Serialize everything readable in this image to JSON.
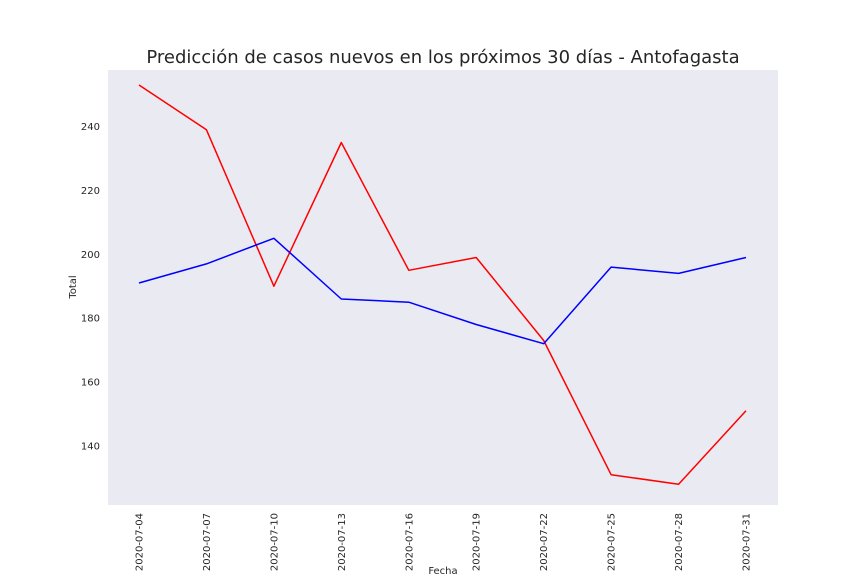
{
  "chart_data": {
    "type": "line",
    "title": "Predicción de casos nuevos en los próximos 30 días - Antofagasta",
    "xlabel": "Fecha",
    "ylabel": "Total",
    "x": [
      "2020-07-04",
      "2020-07-07",
      "2020-07-10",
      "2020-07-13",
      "2020-07-16",
      "2020-07-19",
      "2020-07-22",
      "2020-07-25",
      "2020-07-28",
      "2020-07-31"
    ],
    "xticks": [
      "2020-07-04",
      "2020-07-07",
      "2020-07-10",
      "2020-07-13",
      "2020-07-16",
      "2020-07-19",
      "2020-07-22",
      "2020-07-25",
      "2020-07-28",
      "2020-07-31"
    ],
    "yticks": [
      140,
      160,
      180,
      200,
      220,
      240
    ],
    "ylim": [
      121.5,
      257.7
    ],
    "grid": false,
    "background": "#eaeaf2",
    "series": [
      {
        "color": "#ff0000",
        "values": [
          253,
          239,
          190,
          235,
          195,
          199,
          173,
          131,
          128,
          151
        ]
      },
      {
        "color": "#0000ff",
        "values": [
          191,
          197,
          205,
          186,
          185,
          178,
          172,
          196,
          194,
          199
        ]
      }
    ]
  }
}
